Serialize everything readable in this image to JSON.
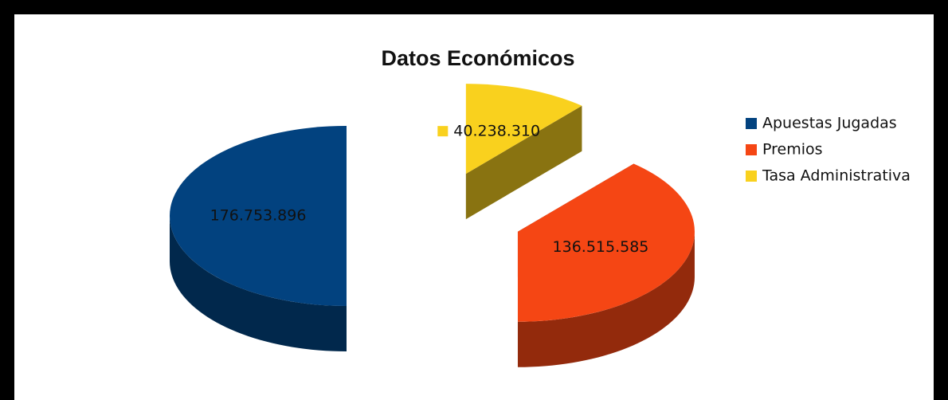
{
  "chart_data": {
    "type": "pie",
    "title": "Datos Económicos",
    "categories": [
      "Apuestas Jugadas",
      "Premios",
      "Tasa Administrativa"
    ],
    "values": [
      176753896,
      136515585,
      40238310
    ],
    "value_labels": [
      "176.753.896",
      "136.515.585",
      "40.238.310"
    ],
    "colors": [
      "#02427f",
      "#f54614",
      "#f9d11e"
    ],
    "legend": "right"
  }
}
